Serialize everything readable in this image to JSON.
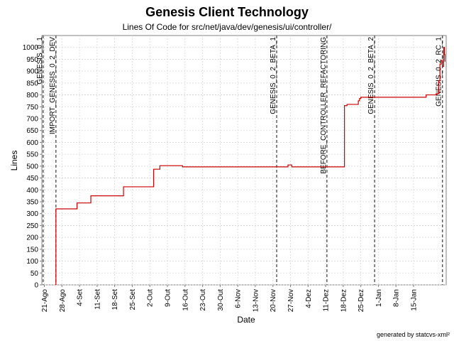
{
  "chart_data": {
    "type": "line",
    "title": "Genesis Client Technology",
    "subtitle": "Lines Of Code for src/net/java/dev/genesis/ui/controller/",
    "xlabel": "Date",
    "ylabel": "Lines",
    "footer": "generated by statcvs-xml²",
    "ylim": [
      0,
      1050
    ],
    "xlim": [
      0,
      161
    ],
    "grid": true,
    "y_ticks": [
      0,
      50,
      100,
      150,
      200,
      250,
      300,
      350,
      400,
      450,
      500,
      550,
      600,
      650,
      700,
      750,
      800,
      850,
      900,
      950,
      1000
    ],
    "x_ticks": [
      {
        "label": "21-Ago",
        "day": 1
      },
      {
        "label": "28-Ago",
        "day": 8
      },
      {
        "label": "4-Set",
        "day": 15
      },
      {
        "label": "11-Set",
        "day": 22
      },
      {
        "label": "18-Set",
        "day": 29
      },
      {
        "label": "25-Set",
        "day": 36
      },
      {
        "label": "2-Out",
        "day": 43
      },
      {
        "label": "9-Out",
        "day": 50
      },
      {
        "label": "16-Out",
        "day": 57
      },
      {
        "label": "23-Out",
        "day": 64
      },
      {
        "label": "30-Out",
        "day": 71
      },
      {
        "label": "6-Nov",
        "day": 78
      },
      {
        "label": "13-Nov",
        "day": 85
      },
      {
        "label": "20-Nov",
        "day": 92
      },
      {
        "label": "27-Nov",
        "day": 99
      },
      {
        "label": "4-Dez",
        "day": 106
      },
      {
        "label": "11-Dez",
        "day": 113
      },
      {
        "label": "18-Dez",
        "day": 120
      },
      {
        "label": "25-Dez",
        "day": 127
      },
      {
        "label": "1-Jan",
        "day": 134
      },
      {
        "label": "8-Jan",
        "day": 141
      },
      {
        "label": "15-Jan",
        "day": 148
      }
    ],
    "markers": [
      {
        "label": "GENESIS_0_1",
        "day": 0.5
      },
      {
        "label": "IMPORT_GENESIS_0_2_DEV",
        "day": 5.6
      },
      {
        "label": "GENESIS_0_2_BETA_1",
        "day": 93.5
      },
      {
        "label": "BEFORE_CONTROLLER_REFACTORING",
        "day": 113.5
      },
      {
        "label": "GENESIS_0_2_BETA_2",
        "day": 132.5
      },
      {
        "label": "GENESIS_0_2_RC_1",
        "day": 159.5
      }
    ],
    "series": [
      {
        "color": "#cc0000",
        "points": [
          [
            5.6,
            0
          ],
          [
            5.6,
            320
          ],
          [
            14,
            320
          ],
          [
            14,
            345
          ],
          [
            19.5,
            345
          ],
          [
            19.5,
            375
          ],
          [
            32.5,
            375
          ],
          [
            32.5,
            413
          ],
          [
            44.5,
            413
          ],
          [
            44.5,
            487
          ],
          [
            47,
            487
          ],
          [
            47,
            502
          ],
          [
            56,
            502
          ],
          [
            56,
            497
          ],
          [
            98,
            497
          ],
          [
            98,
            505
          ],
          [
            99.5,
            505
          ],
          [
            99.5,
            497
          ],
          [
            120.5,
            497
          ],
          [
            120.5,
            755
          ],
          [
            121.5,
            755
          ],
          [
            121.5,
            760
          ],
          [
            126,
            760
          ],
          [
            126,
            775
          ],
          [
            126.5,
            775
          ],
          [
            126.5,
            785
          ],
          [
            127,
            785
          ],
          [
            127,
            790
          ],
          [
            153,
            790
          ],
          [
            153,
            800
          ],
          [
            157,
            800
          ],
          [
            157,
            805
          ],
          [
            158,
            805
          ],
          [
            158,
            860
          ],
          [
            158.5,
            860
          ],
          [
            158.5,
            930
          ],
          [
            159,
            930
          ],
          [
            159,
            945
          ],
          [
            159.5,
            945
          ],
          [
            159.5,
            920
          ],
          [
            160,
            920
          ],
          [
            160,
            1000
          ],
          [
            160.3,
            1000
          ],
          [
            160.3,
            970
          ],
          [
            160.5,
            970
          ],
          [
            160.5,
            940
          ]
        ]
      }
    ]
  }
}
